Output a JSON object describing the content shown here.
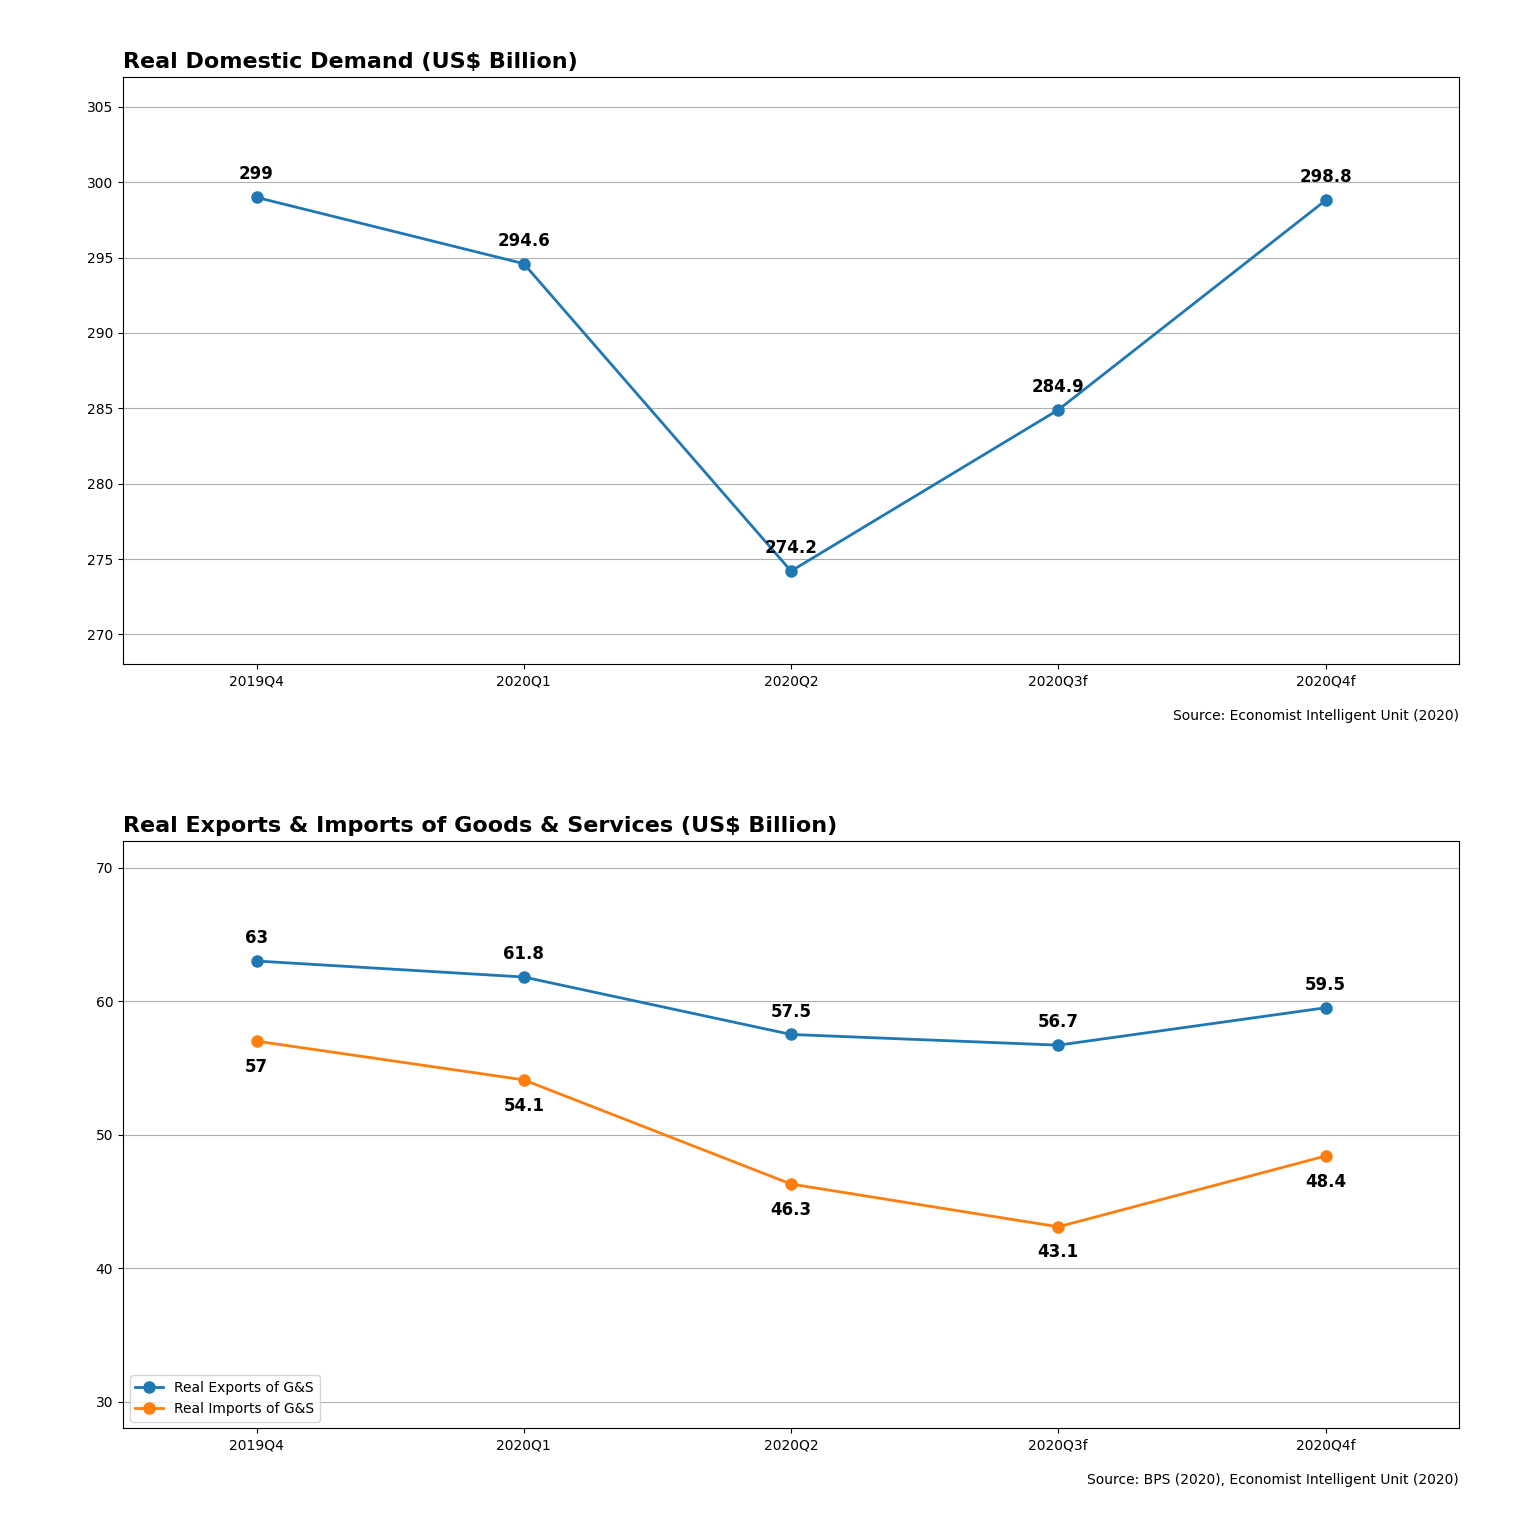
{
  "chart_data": [
    {
      "type": "line",
      "title": "Real Domestic Demand (US$ Billion)",
      "categories": [
        "2019Q4",
        "2020Q1",
        "2020Q2",
        "2020Q3f",
        "2020Q4f"
      ],
      "series": [
        {
          "name": "Real Domestic Demand",
          "values": [
            299,
            294.6,
            274.2,
            284.9,
            298.8
          ]
        }
      ],
      "ylim": [
        268,
        307
      ],
      "yticks": [
        270,
        275,
        280,
        285,
        290,
        295,
        300,
        305
      ],
      "grid": true,
      "marker": "o",
      "data_labels": true,
      "source": "Source: Economist Intelligent Unit (2020)"
    },
    {
      "type": "line",
      "title": "Real Exports & Imports of Goods & Services (US$ Billion)",
      "categories": [
        "2019Q4",
        "2020Q1",
        "2020Q2",
        "2020Q3f",
        "2020Q4f"
      ],
      "series": [
        {
          "name": "Real Exports of G&S",
          "values": [
            63,
            61.8,
            57.5,
            56.7,
            59.5
          ]
        },
        {
          "name": "Real Imports of G&S",
          "values": [
            57,
            54.1,
            46.3,
            43.1,
            48.4
          ]
        }
      ],
      "ylim": [
        28,
        72
      ],
      "yticks": [
        30,
        40,
        50,
        60,
        70
      ],
      "grid": true,
      "marker": "o",
      "data_labels": true,
      "legend": "lower left",
      "source": "Source: BPS (2020), Economist Intelligent Unit (2020)"
    }
  ]
}
